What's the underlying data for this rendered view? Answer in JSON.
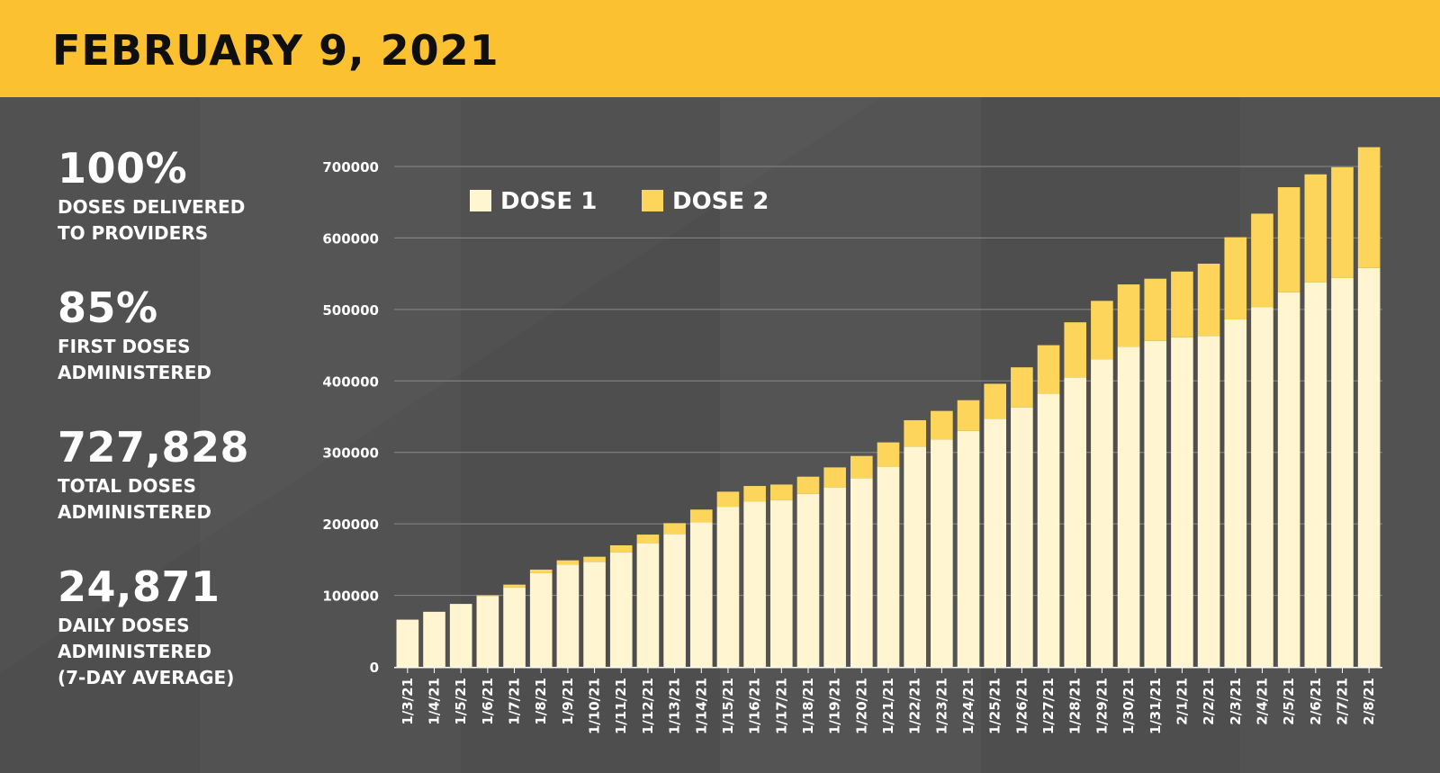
{
  "header": {
    "title": "FEBRUARY 9, 2021"
  },
  "colors": {
    "header_bg": "#fcc130",
    "background": "#515151",
    "dose1": "#fff5d0",
    "dose2": "#fdd55a",
    "text": "#ffffff"
  },
  "stats": [
    {
      "value": "100%",
      "label_lines": [
        "DOSES DELIVERED",
        "TO PROVIDERS"
      ]
    },
    {
      "value": "85%",
      "label_lines": [
        "FIRST DOSES",
        "ADMINISTERED"
      ]
    },
    {
      "value": "727,828",
      "label_lines": [
        "TOTAL DOSES",
        "ADMINISTERED"
      ]
    },
    {
      "value": "24,871",
      "label_lines": [
        "DAILY DOSES",
        "ADMINISTERED",
        "(7-DAY AVERAGE)"
      ]
    }
  ],
  "chart_data": {
    "type": "bar",
    "stacked": true,
    "title": "",
    "xlabel": "",
    "ylabel": "",
    "ylim": [
      0,
      700000
    ],
    "yticks": [
      "700000",
      "600000",
      "500000",
      "400000",
      "300000",
      "200000",
      "100000",
      "0"
    ],
    "categories": [
      "1/3/21",
      "1/4/21",
      "1/5/21",
      "1/6/21",
      "1/7/21",
      "1/8/21",
      "1/9/21",
      "1/10/21",
      "1/11/21",
      "1/12/21",
      "1/13/21",
      "1/14/21",
      "1/15/21",
      "1/16/21",
      "1/17/21",
      "1/18/21",
      "1/19/21",
      "1/20/21",
      "1/21/21",
      "1/22/21",
      "1/23/21",
      "1/24/21",
      "1/25/21",
      "1/26/21",
      "1/27/21",
      "1/28/21",
      "1/29/21",
      "1/30/21",
      "1/31/21",
      "2/1/21",
      "2/2/21",
      "2/3/21",
      "2/4/21",
      "2/5/21",
      "2/6/21",
      "2/7/21",
      "2/8/21"
    ],
    "legend": [
      "DOSE 1",
      "DOSE 2"
    ],
    "series": [
      {
        "name": "DOSE 1",
        "values": [
          66000,
          77000,
          88000,
          99000,
          111000,
          131000,
          143000,
          147000,
          160000,
          173000,
          186000,
          202000,
          224000,
          231000,
          233000,
          242000,
          251000,
          264000,
          280000,
          308000,
          318000,
          330000,
          347000,
          363000,
          382000,
          405000,
          430000,
          448000,
          456000,
          461000,
          463000,
          486000,
          503000,
          524000,
          538000,
          544000,
          558000
        ]
      },
      {
        "name": "DOSE 2",
        "values": [
          0,
          0,
          0,
          1000,
          4000,
          5000,
          6000,
          7000,
          10000,
          12000,
          15000,
          18000,
          21000,
          22000,
          22000,
          24000,
          28000,
          31000,
          34000,
          37000,
          40000,
          43000,
          49000,
          56000,
          68000,
          77000,
          82000,
          87000,
          87000,
          92000,
          101000,
          115000,
          131000,
          147000,
          151000,
          155000,
          169000
        ]
      }
    ]
  }
}
